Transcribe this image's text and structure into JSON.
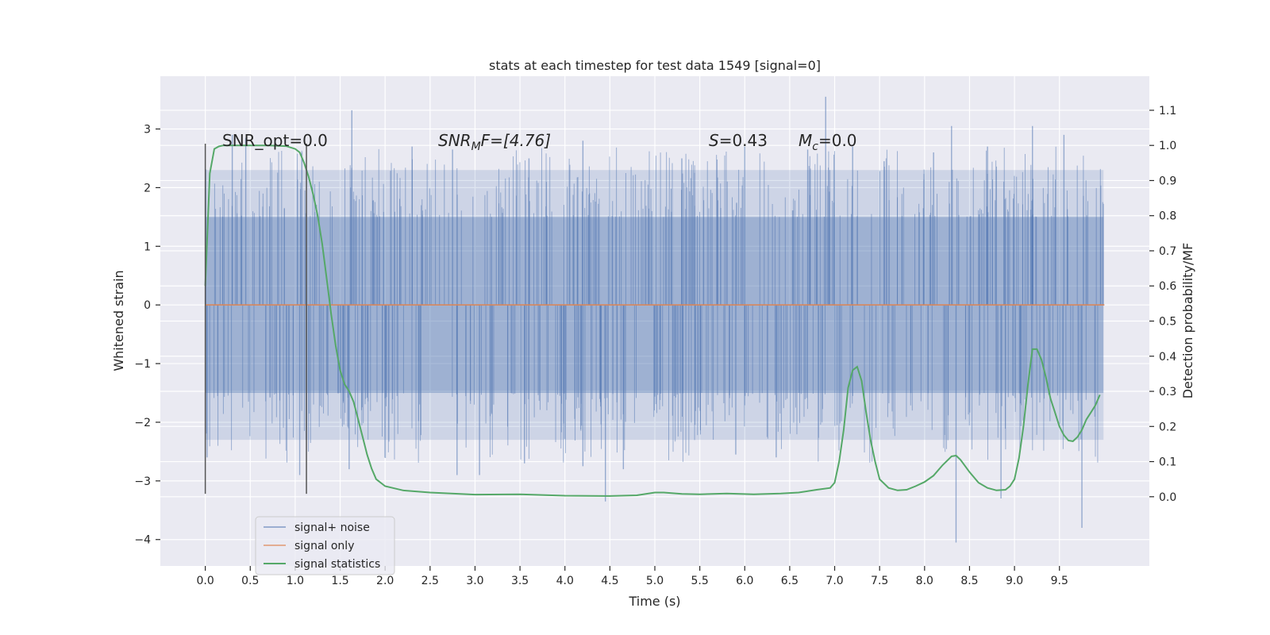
{
  "chart_data": {
    "type": "line",
    "title": "stats at each timestep for test data 1549 [signal=0]",
    "xlabel": "Time (s)",
    "ylabel": "Whitened strain",
    "y2label": "Detection probability/MF",
    "xlim": [
      -0.5,
      10.5
    ],
    "ylim": [
      -4.45,
      3.9
    ],
    "y2lim": [
      -0.197,
      1.197
    ],
    "x_ticks": [
      "0.0",
      "0.5",
      "1.0",
      "1.5",
      "2.0",
      "2.5",
      "3.0",
      "3.5",
      "4.0",
      "4.5",
      "5.0",
      "5.5",
      "6.0",
      "6.5",
      "7.0",
      "7.5",
      "8.0",
      "8.5",
      "9.0",
      "9.5"
    ],
    "y_ticks": [
      "3",
      "2",
      "1",
      "0",
      "−1",
      "−2",
      "−3",
      "−4"
    ],
    "y2_ticks": [
      "1.1",
      "1.0",
      "0.9",
      "0.8",
      "0.7",
      "0.6",
      "0.5",
      "0.4",
      "0.3",
      "0.2",
      "0.1",
      "0.0"
    ],
    "grid": true,
    "legend_position": "lower-left",
    "annotations": {
      "snr_opt": "SNR_opt=0.0",
      "snr_mf_base": "SNR",
      "snr_mf_sub": "M",
      "snr_mf_rest": "F=[4.76]",
      "s_var": "S",
      "s_val": "=0.43",
      "mc_var": "M",
      "mc_sub": "c",
      "mc_val": "=0.0"
    },
    "vlines": [
      {
        "x": 0.0,
        "ymin": -3.22,
        "ymax": 2.75
      },
      {
        "x": 1.125,
        "ymin": -3.22,
        "ymax": 2.75
      }
    ],
    "series": [
      {
        "name": "signal+ noise",
        "color": "#4c72b0",
        "x_range": [
          0,
          9.99
        ],
        "band_low": -1.5,
        "band_high": 1.5,
        "spikes": [
          {
            "x": 0.02,
            "y": -2.6
          },
          {
            "x": 0.3,
            "y": 2.9
          },
          {
            "x": 0.45,
            "y": 2.85
          },
          {
            "x": 1.05,
            "y": -2.9
          },
          {
            "x": 1.63,
            "y": 3.32
          },
          {
            "x": 1.6,
            "y": -2.8
          },
          {
            "x": 2.3,
            "y": 2.7
          },
          {
            "x": 2.75,
            "y": 2.65
          },
          {
            "x": 2.8,
            "y": -2.9
          },
          {
            "x": 3.05,
            "y": -2.9
          },
          {
            "x": 3.6,
            "y": 2.5
          },
          {
            "x": 4.2,
            "y": 2.8
          },
          {
            "x": 4.2,
            "y": -2.75
          },
          {
            "x": 4.45,
            "y": -3.35
          },
          {
            "x": 4.65,
            "y": -2.8
          },
          {
            "x": 5.3,
            "y": 2.5
          },
          {
            "x": 6.0,
            "y": 2.7
          },
          {
            "x": 6.35,
            "y": -2.6
          },
          {
            "x": 6.7,
            "y": 2.65
          },
          {
            "x": 6.9,
            "y": 3.55
          },
          {
            "x": 7.2,
            "y": 2.7
          },
          {
            "x": 7.55,
            "y": 2.45
          },
          {
            "x": 8.1,
            "y": 2.6
          },
          {
            "x": 8.3,
            "y": 3.05
          },
          {
            "x": 8.35,
            "y": -4.05
          },
          {
            "x": 8.7,
            "y": 2.7
          },
          {
            "x": 8.85,
            "y": -3.3
          },
          {
            "x": 9.2,
            "y": 3.05
          },
          {
            "x": 9.55,
            "y": 2.9
          },
          {
            "x": 9.75,
            "y": -3.8
          },
          {
            "x": 3.55,
            "y": -2.7
          },
          {
            "x": 5.9,
            "y": -2.55
          }
        ]
      },
      {
        "name": "signal only",
        "color": "#dd8452",
        "x": [
          0.0,
          10.0
        ],
        "y": [
          0.0,
          0.0
        ]
      },
      {
        "name": "signal statistics",
        "color": "#55a868",
        "axis": "right",
        "x": [
          0.0,
          0.05,
          0.1,
          0.15,
          0.2,
          0.3,
          0.5,
          0.7,
          0.9,
          1.0,
          1.05,
          1.1,
          1.15,
          1.2,
          1.25,
          1.3,
          1.35,
          1.4,
          1.45,
          1.5,
          1.55,
          1.6,
          1.65,
          1.7,
          1.75,
          1.8,
          1.85,
          1.9,
          2.0,
          2.2,
          2.5,
          3.0,
          3.5,
          4.0,
          4.5,
          4.8,
          5.0,
          5.1,
          5.3,
          5.5,
          5.8,
          6.1,
          6.4,
          6.6,
          6.8,
          6.95,
          7.0,
          7.05,
          7.1,
          7.15,
          7.2,
          7.25,
          7.3,
          7.35,
          7.4,
          7.45,
          7.5,
          7.6,
          7.7,
          7.8,
          7.9,
          8.0,
          8.1,
          8.2,
          8.3,
          8.35,
          8.4,
          8.5,
          8.6,
          8.7,
          8.8,
          8.9,
          8.95,
          9.0,
          9.05,
          9.1,
          9.15,
          9.2,
          9.25,
          9.3,
          9.35,
          9.4,
          9.45,
          9.5,
          9.55,
          9.6,
          9.65,
          9.7,
          9.75,
          9.8,
          9.85,
          9.9,
          9.95
        ],
        "y": [
          0.6,
          0.92,
          0.99,
          0.997,
          1.0,
          1.0,
          1.0,
          1.0,
          0.998,
          0.99,
          0.98,
          0.95,
          0.91,
          0.86,
          0.8,
          0.72,
          0.62,
          0.52,
          0.43,
          0.36,
          0.32,
          0.3,
          0.27,
          0.22,
          0.17,
          0.12,
          0.08,
          0.05,
          0.03,
          0.018,
          0.012,
          0.006,
          0.007,
          0.003,
          0.002,
          0.004,
          0.012,
          0.012,
          0.008,
          0.007,
          0.009,
          0.007,
          0.009,
          0.012,
          0.02,
          0.025,
          0.04,
          0.1,
          0.19,
          0.31,
          0.36,
          0.37,
          0.33,
          0.24,
          0.16,
          0.1,
          0.05,
          0.025,
          0.018,
          0.02,
          0.03,
          0.042,
          0.06,
          0.09,
          0.115,
          0.117,
          0.105,
          0.07,
          0.04,
          0.025,
          0.018,
          0.02,
          0.03,
          0.05,
          0.11,
          0.2,
          0.32,
          0.42,
          0.42,
          0.39,
          0.34,
          0.28,
          0.24,
          0.2,
          0.175,
          0.16,
          0.158,
          0.17,
          0.19,
          0.22,
          0.24,
          0.26,
          0.29
        ]
      }
    ]
  }
}
